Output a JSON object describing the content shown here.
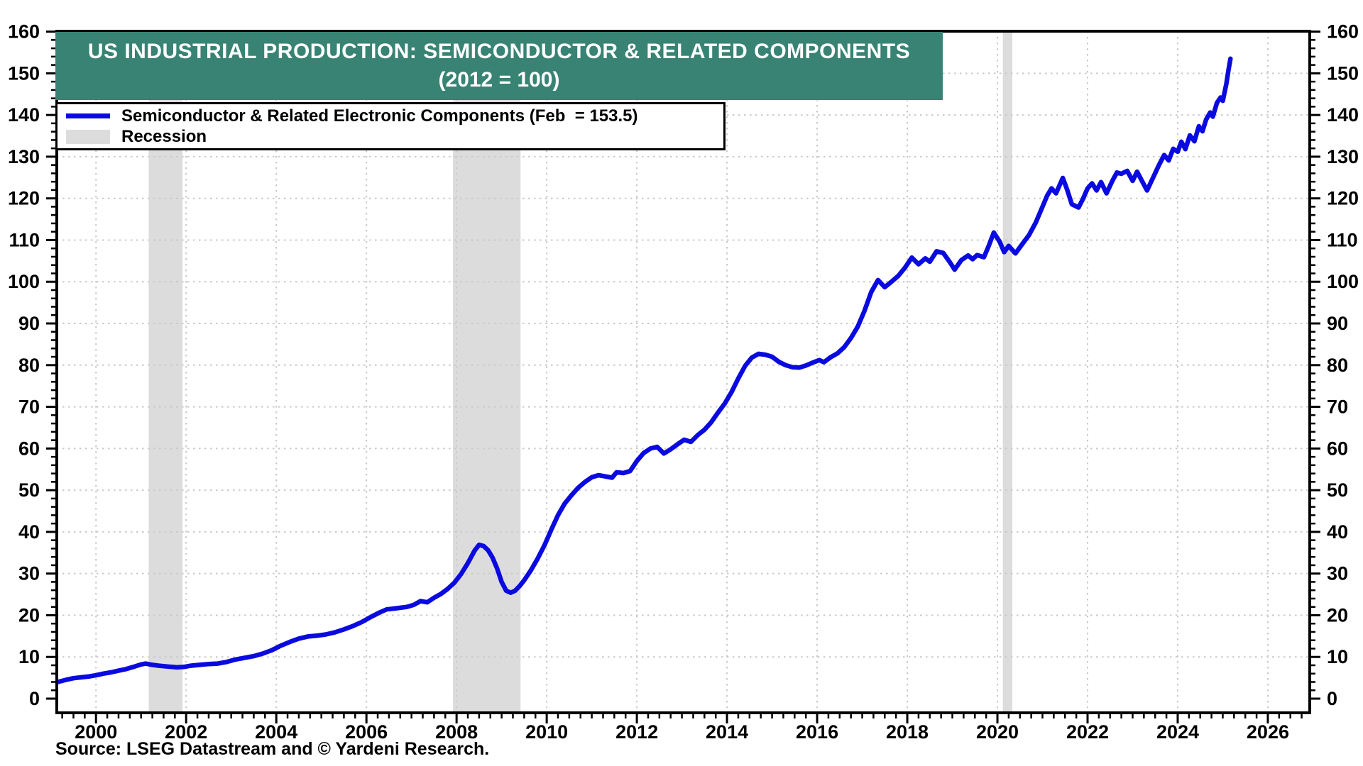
{
  "title": {
    "line1": "US INDUSTRIAL PRODUCTION: SEMICONDUCTOR & RELATED COMPONENTS",
    "line2": "(2012 = 100)",
    "bg_color": "#388374",
    "text_color": "#ffffff"
  },
  "legend": {
    "items": [
      {
        "label": "Semiconductor & Related Electronic Components (Feb  = 153.5)",
        "swatch": "line",
        "color": "#0a0ae0"
      },
      {
        "label": "Recession",
        "swatch": "box",
        "color": "#dcdcdc"
      }
    ]
  },
  "source": "Source: LSEG Datastream and © Yardeni Research.",
  "chart_data": {
    "type": "line",
    "title": "US INDUSTRIAL PRODUCTION: SEMICONDUCTOR & RELATED COMPONENTS (2012 = 100)",
    "xlabel": "",
    "ylabel": "",
    "x_range": [
      1999.13,
      2026.93
    ],
    "y_range": [
      0,
      160
    ],
    "x_major_ticks": [
      2000,
      2002,
      2004,
      2006,
      2008,
      2010,
      2012,
      2014,
      2016,
      2018,
      2020,
      2022,
      2024,
      2026
    ],
    "y_major_ticks": [
      0,
      10,
      20,
      30,
      40,
      50,
      60,
      70,
      80,
      90,
      100,
      110,
      120,
      130,
      140,
      150,
      160
    ],
    "grid": true,
    "legend_position": "top-left",
    "colors": {
      "line": "#0a0ae0",
      "recession_band": "#dcdcdc",
      "gridline": "#c9c9c9",
      "frame": "#000000"
    },
    "recession_bands": [
      [
        2001.17,
        2001.92
      ],
      [
        2007.92,
        2009.42
      ],
      [
        2020.12,
        2020.33
      ]
    ],
    "series": [
      {
        "name": "Semiconductor & Related Electronic Components",
        "latest_label": "Feb = 153.5",
        "color": "#0a0ae0",
        "points": [
          [
            1999.15,
            4.0
          ],
          [
            1999.33,
            4.5
          ],
          [
            1999.5,
            4.9
          ],
          [
            1999.67,
            5.1
          ],
          [
            1999.83,
            5.3
          ],
          [
            2000.0,
            5.6
          ],
          [
            2000.17,
            6.0
          ],
          [
            2000.33,
            6.3
          ],
          [
            2000.5,
            6.7
          ],
          [
            2000.67,
            7.1
          ],
          [
            2000.83,
            7.6
          ],
          [
            2001.0,
            8.2
          ],
          [
            2001.1,
            8.4
          ],
          [
            2001.25,
            8.1
          ],
          [
            2001.4,
            7.9
          ],
          [
            2001.6,
            7.7
          ],
          [
            2001.8,
            7.5
          ],
          [
            2001.95,
            7.6
          ],
          [
            2002.1,
            7.9
          ],
          [
            2002.3,
            8.1
          ],
          [
            2002.5,
            8.3
          ],
          [
            2002.7,
            8.4
          ],
          [
            2002.9,
            8.8
          ],
          [
            2003.1,
            9.4
          ],
          [
            2003.3,
            9.8
          ],
          [
            2003.5,
            10.2
          ],
          [
            2003.7,
            10.8
          ],
          [
            2003.9,
            11.6
          ],
          [
            2004.1,
            12.7
          ],
          [
            2004.3,
            13.6
          ],
          [
            2004.5,
            14.4
          ],
          [
            2004.7,
            14.9
          ],
          [
            2004.9,
            15.1
          ],
          [
            2005.1,
            15.4
          ],
          [
            2005.3,
            15.9
          ],
          [
            2005.5,
            16.6
          ],
          [
            2005.7,
            17.4
          ],
          [
            2005.9,
            18.4
          ],
          [
            2006.1,
            19.6
          ],
          [
            2006.3,
            20.7
          ],
          [
            2006.45,
            21.4
          ],
          [
            2006.6,
            21.6
          ],
          [
            2006.75,
            21.8
          ],
          [
            2006.9,
            22.0
          ],
          [
            2007.05,
            22.5
          ],
          [
            2007.2,
            23.4
          ],
          [
            2007.35,
            23.1
          ],
          [
            2007.5,
            24.2
          ],
          [
            2007.65,
            25.1
          ],
          [
            2007.8,
            26.3
          ],
          [
            2007.95,
            27.8
          ],
          [
            2008.1,
            29.9
          ],
          [
            2008.25,
            32.5
          ],
          [
            2008.4,
            35.5
          ],
          [
            2008.5,
            36.9
          ],
          [
            2008.6,
            36.6
          ],
          [
            2008.7,
            35.6
          ],
          [
            2008.8,
            33.8
          ],
          [
            2008.9,
            31.2
          ],
          [
            2009.0,
            28.0
          ],
          [
            2009.1,
            25.9
          ],
          [
            2009.2,
            25.4
          ],
          [
            2009.3,
            25.9
          ],
          [
            2009.4,
            27.0
          ],
          [
            2009.5,
            28.4
          ],
          [
            2009.65,
            30.8
          ],
          [
            2009.8,
            33.6
          ],
          [
            2009.95,
            36.8
          ],
          [
            2010.1,
            40.5
          ],
          [
            2010.25,
            44.0
          ],
          [
            2010.4,
            46.8
          ],
          [
            2010.55,
            48.8
          ],
          [
            2010.7,
            50.6
          ],
          [
            2010.85,
            52.0
          ],
          [
            2011.0,
            53.1
          ],
          [
            2011.15,
            53.6
          ],
          [
            2011.3,
            53.3
          ],
          [
            2011.45,
            53.0
          ],
          [
            2011.55,
            54.3
          ],
          [
            2011.7,
            54.1
          ],
          [
            2011.85,
            54.6
          ],
          [
            2012.0,
            57.0
          ],
          [
            2012.15,
            58.9
          ],
          [
            2012.3,
            60.0
          ],
          [
            2012.45,
            60.4
          ],
          [
            2012.6,
            58.8
          ],
          [
            2012.75,
            59.8
          ],
          [
            2012.9,
            61.0
          ],
          [
            2013.05,
            62.1
          ],
          [
            2013.2,
            61.6
          ],
          [
            2013.35,
            63.2
          ],
          [
            2013.5,
            64.5
          ],
          [
            2013.65,
            66.3
          ],
          [
            2013.8,
            68.6
          ],
          [
            2013.95,
            70.8
          ],
          [
            2014.1,
            73.5
          ],
          [
            2014.25,
            76.8
          ],
          [
            2014.4,
            79.8
          ],
          [
            2014.55,
            81.8
          ],
          [
            2014.7,
            82.7
          ],
          [
            2014.85,
            82.5
          ],
          [
            2015.0,
            82.0
          ],
          [
            2015.15,
            80.8
          ],
          [
            2015.3,
            80.0
          ],
          [
            2015.45,
            79.5
          ],
          [
            2015.6,
            79.4
          ],
          [
            2015.75,
            79.9
          ],
          [
            2015.9,
            80.6
          ],
          [
            2016.05,
            81.2
          ],
          [
            2016.15,
            80.7
          ],
          [
            2016.3,
            81.9
          ],
          [
            2016.45,
            82.8
          ],
          [
            2016.6,
            84.3
          ],
          [
            2016.75,
            86.5
          ],
          [
            2016.9,
            89.2
          ],
          [
            2017.05,
            93.0
          ],
          [
            2017.2,
            97.5
          ],
          [
            2017.35,
            100.4
          ],
          [
            2017.5,
            98.7
          ],
          [
            2017.65,
            100.0
          ],
          [
            2017.8,
            101.4
          ],
          [
            2017.95,
            103.4
          ],
          [
            2018.1,
            105.8
          ],
          [
            2018.25,
            104.2
          ],
          [
            2018.4,
            105.6
          ],
          [
            2018.5,
            104.8
          ],
          [
            2018.65,
            107.3
          ],
          [
            2018.8,
            106.9
          ],
          [
            2018.95,
            104.6
          ],
          [
            2019.05,
            102.9
          ],
          [
            2019.2,
            105.2
          ],
          [
            2019.35,
            106.3
          ],
          [
            2019.45,
            105.4
          ],
          [
            2019.55,
            106.4
          ],
          [
            2019.7,
            105.9
          ],
          [
            2019.8,
            108.4
          ],
          [
            2019.92,
            111.8
          ],
          [
            2020.05,
            109.6
          ],
          [
            2020.15,
            107.1
          ],
          [
            2020.25,
            108.6
          ],
          [
            2020.4,
            106.8
          ],
          [
            2020.55,
            109.0
          ],
          [
            2020.7,
            111.2
          ],
          [
            2020.85,
            114.2
          ],
          [
            2021.0,
            118.0
          ],
          [
            2021.1,
            120.6
          ],
          [
            2021.2,
            122.4
          ],
          [
            2021.3,
            121.2
          ],
          [
            2021.45,
            124.9
          ],
          [
            2021.55,
            122.0
          ],
          [
            2021.65,
            118.6
          ],
          [
            2021.8,
            117.8
          ],
          [
            2021.9,
            119.9
          ],
          [
            2022.0,
            122.4
          ],
          [
            2022.1,
            123.6
          ],
          [
            2022.2,
            121.9
          ],
          [
            2022.3,
            123.9
          ],
          [
            2022.42,
            121.2
          ],
          [
            2022.55,
            124.2
          ],
          [
            2022.65,
            126.2
          ],
          [
            2022.75,
            125.9
          ],
          [
            2022.88,
            126.6
          ],
          [
            2023.0,
            124.2
          ],
          [
            2023.1,
            126.4
          ],
          [
            2023.22,
            123.9
          ],
          [
            2023.32,
            121.9
          ],
          [
            2023.45,
            124.9
          ],
          [
            2023.58,
            127.9
          ],
          [
            2023.7,
            130.4
          ],
          [
            2023.8,
            129.1
          ],
          [
            2023.9,
            131.9
          ],
          [
            2024.0,
            131.2
          ],
          [
            2024.08,
            133.6
          ],
          [
            2024.17,
            131.8
          ],
          [
            2024.27,
            135.1
          ],
          [
            2024.37,
            133.7
          ],
          [
            2024.47,
            137.3
          ],
          [
            2024.55,
            136.1
          ],
          [
            2024.63,
            138.9
          ],
          [
            2024.72,
            140.6
          ],
          [
            2024.78,
            139.6
          ],
          [
            2024.87,
            142.9
          ],
          [
            2024.95,
            144.2
          ],
          [
            2025.0,
            143.4
          ],
          [
            2025.08,
            147.5
          ],
          [
            2025.13,
            151.0
          ],
          [
            2025.17,
            153.5
          ]
        ]
      }
    ]
  }
}
